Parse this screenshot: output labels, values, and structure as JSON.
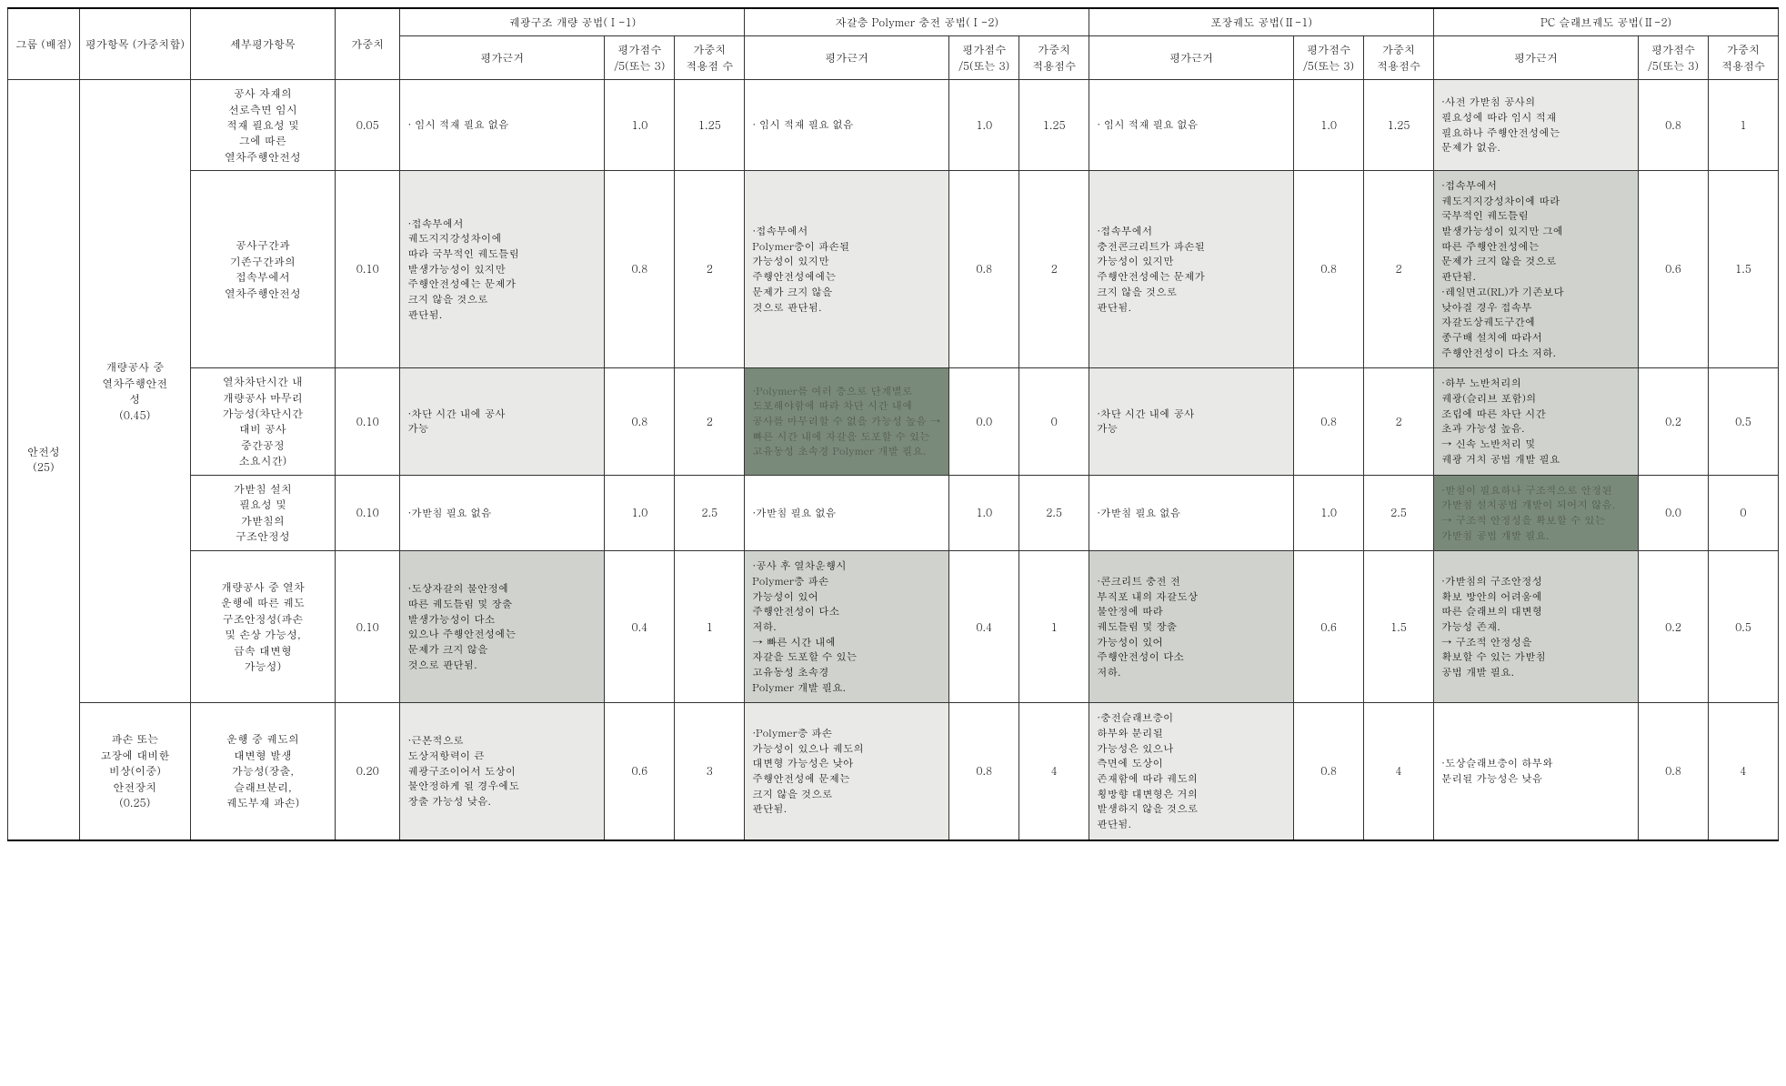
{
  "palette": {
    "shade_light": "#e9eae7",
    "shade_med": "#cfd2cd",
    "shade_dark": "#7a8a7a"
  },
  "header": {
    "group": "그룹\n(배점)",
    "category": "평가항목\n(가중치합)",
    "sub": "세부평가항목",
    "weight": "가중치",
    "methods": [
      "궤광구조 개량 공법(Ⅰ-1)",
      "자갈층 Polymer 충전 공법(Ⅰ-2)",
      "포장궤도 공법(Ⅱ-1)",
      "PC 슬래브궤도 공법(Ⅱ-2)"
    ],
    "basis": "평가근거",
    "score": "평가점수\n/5(또는 3)",
    "wscore_a": "가중치\n적용점\n수",
    "wscore_b": "가중치\n적용점수"
  },
  "group": {
    "name": "안전성",
    "points": "(25)"
  },
  "cat1": {
    "name": "개량공사 중\n열차주행안전\n성",
    "sum": "(0.45)"
  },
  "cat2": {
    "name": "파손 또는\n고장에 대비한\n비상(이중)\n안전장치",
    "sum": "(0.25)"
  },
  "rows": [
    {
      "sub": "공사 자재의\n선로측면 임시\n적재 필요성 및\n그에 따른\n열차주행안전성",
      "weight": "0.05",
      "m1": {
        "basis": "· 임시 적재 필요 없음",
        "score": "1.0",
        "wscore": "1.25",
        "shade": ""
      },
      "m2": {
        "basis": "· 임시 적재 필요 없음",
        "score": "1.0",
        "wscore": "1.25",
        "shade": ""
      },
      "m3": {
        "basis": "· 임시 적재 필요 없음",
        "score": "1.0",
        "wscore": "1.25",
        "shade": ""
      },
      "m4": {
        "basis": "·사전 가받침 공사의\n필요성에 따라 임시 적재\n필요하나 주행안전성에는\n문제가 없음.",
        "score": "0.8",
        "wscore": "1",
        "shade": "sh-light"
      }
    },
    {
      "sub": "공사구간과\n기존구간과의\n접속부에서\n열차주행안전성",
      "weight": "0.10",
      "m1": {
        "basis": "·접속부에서\n궤도지지강성차이에\n따라 국부적인 궤도틀림\n발생가능성이 있지만\n주행안전성에는 문제가\n크지 않을 것으로\n판단됨.",
        "score": "0.8",
        "wscore": "2",
        "shade": "sh-light"
      },
      "m2": {
        "basis": "·접속부에서\nPolymer층이 파손될\n가능성이 있지만\n주행안전성에에는\n문제가 크지 않을\n것으로 판단됨.",
        "score": "0.8",
        "wscore": "2",
        "shade": "sh-light"
      },
      "m3": {
        "basis": "·접속부에서\n충전콘크리트가 파손될\n가능성이 있지만\n주행안전성에는 문제가\n크지 않을 것으로\n판단됨.",
        "score": "0.8",
        "wscore": "2",
        "shade": "sh-light"
      },
      "m4": {
        "basis": "·접속부에서\n궤도지지강성차이에 따라\n국부적인 궤도틀림\n발생가능성이 있지만 그에\n따른 주행안전성에는\n문제가 크지 않을 것으로\n판단됨.\n·레일면고(RL)가 기존보다\n낮아질 경우 접속부\n자갈도상궤도구간에\n종구배 설치에 따라서\n주행안전성이 다소 저하.",
        "score": "0.6",
        "wscore": "1.5",
        "shade": "sh-med"
      }
    },
    {
      "sub": "열차차단시간 내\n개량공사 마무리\n가능성(차단시간\n대비 공사\n중간공정\n소요시간)",
      "weight": "0.10",
      "m1": {
        "basis": "·차단 시간 내에 공사\n가능",
        "score": "0.8",
        "wscore": "2",
        "shade": "sh-light"
      },
      "m2": {
        "basis": "·Polymer를 여러 층으로 단계별로 도포해야함에 따라 차단 시간 내에 공사를 마무리할 수 없을 가능성 높음 → 빠른 시간 내에 자갈을 도포할 수 있는 고유동성 초속경 Polymer 개발 필요.",
        "score": "0.0",
        "wscore": "0",
        "shade": "sh-dark"
      },
      "m3": {
        "basis": "·차단 시간 내에 공사\n가능",
        "score": "0.8",
        "wscore": "2",
        "shade": "sh-light"
      },
      "m4": {
        "basis": "·하부 노반처리의\n궤광(슬리브 포함)의\n조립에 따른 차단 시간\n초과 가능성 높음.\n → 신속 노반처리 및\n궤광 거치 공법 개발 필요",
        "score": "0.2",
        "wscore": "0.5",
        "shade": "sh-med"
      }
    },
    {
      "sub": "가받침 설치\n필요성 및\n가받침의\n구조안정성",
      "weight": "0.10",
      "m1": {
        "basis": "·가받침 필요 없음",
        "score": "1.0",
        "wscore": "2.5",
        "shade": ""
      },
      "m2": {
        "basis": "·가받침 필요 없음",
        "score": "1.0",
        "wscore": "2.5",
        "shade": ""
      },
      "m3": {
        "basis": "·가받침 필요 없음",
        "score": "1.0",
        "wscore": "2.5",
        "shade": ""
      },
      "m4": {
        "basis": "·받침이 필요하나 구조적으로 안정된 가받침 설치공법 개발이 되어지 않음.\n → 구조적 안정성을 확보할 수 있는 가받침 공법 개발 필요.",
        "score": "0.0",
        "wscore": "0",
        "shade": "sh-dark"
      }
    },
    {
      "sub": "개량공사 중 열차\n운행에 따른 궤도\n구조안정성(파손\n및 손상 가능성,\n급속 대변형\n가능성)",
      "weight": "0.10",
      "m1": {
        "basis": "·도상자갈의 불안정에\n따른 궤도틀림 및 장출\n발생가능성이 다소\n있으나 주행안전성에는\n문제가 크지 않을\n것으로 판단됨.",
        "score": "0.4",
        "wscore": "1",
        "shade": "sh-med"
      },
      "m2": {
        "basis": "·공사 후 열차운행시\nPolymer층 파손\n가능성이 있어\n주행안전성이 다소\n저하.\n → 빠른 시간 내에\n자갈을 도포할 수 있는\n고유동성 초속경\nPolymer 개발 필요.",
        "score": "0.4",
        "wscore": "1",
        "shade": "sh-med"
      },
      "m3": {
        "basis": "·콘크리트 충전 전\n부직포 내의 자갈도상\n불안정에 따라\n궤도틀림 및 장출\n가능성이 있어\n주행안전성이 다소\n저하.",
        "score": "0.6",
        "wscore": "1.5",
        "shade": "sh-med"
      },
      "m4": {
        "basis": "·가받침의 구조안정성\n확보 방안의 어려움에\n따른 슬래브의 대변형\n가능성 존재.\n → 구조적 안정성을\n확보할 수 있는 가받침\n공법 개발 필요.",
        "score": "0.2",
        "wscore": "0.5",
        "shade": "sh-med"
      }
    },
    {
      "sub": "운행 중 궤도의\n대변형 발생\n가능성(장출,\n슬래브분리,\n궤도부재 파손)",
      "weight": "0.20",
      "m1": {
        "basis": "·근본적으로\n도상저항력이 큰\n궤광구조이어서 도상이\n불안정하게 될 경우에도\n장출 가능성 낮음.",
        "score": "0.6",
        "wscore": "3",
        "shade": "sh-light"
      },
      "m2": {
        "basis": "·Polymer층 파손\n가능성이 있으나 궤도의\n대변형 가능성은 낮아\n주행안전성에 문제는\n크지 않을 것으로\n판단됨.",
        "score": "0.8",
        "wscore": "4",
        "shade": "sh-light"
      },
      "m3": {
        "basis": "·충전슬래브층이\n하부와 분리될\n가능성은 있으나\n측면에 도상이\n존재함에 따라 궤도의\n횡방향 대변형은 거의\n발생하지 않을 것으로\n판단됨.",
        "score": "0.8",
        "wscore": "4",
        "shade": "sh-light"
      },
      "m4": {
        "basis": "·도상슬래브층이 하부와\n분리될 가능성은 낮음",
        "score": "0.8",
        "wscore": "4",
        "shade": ""
      }
    }
  ]
}
